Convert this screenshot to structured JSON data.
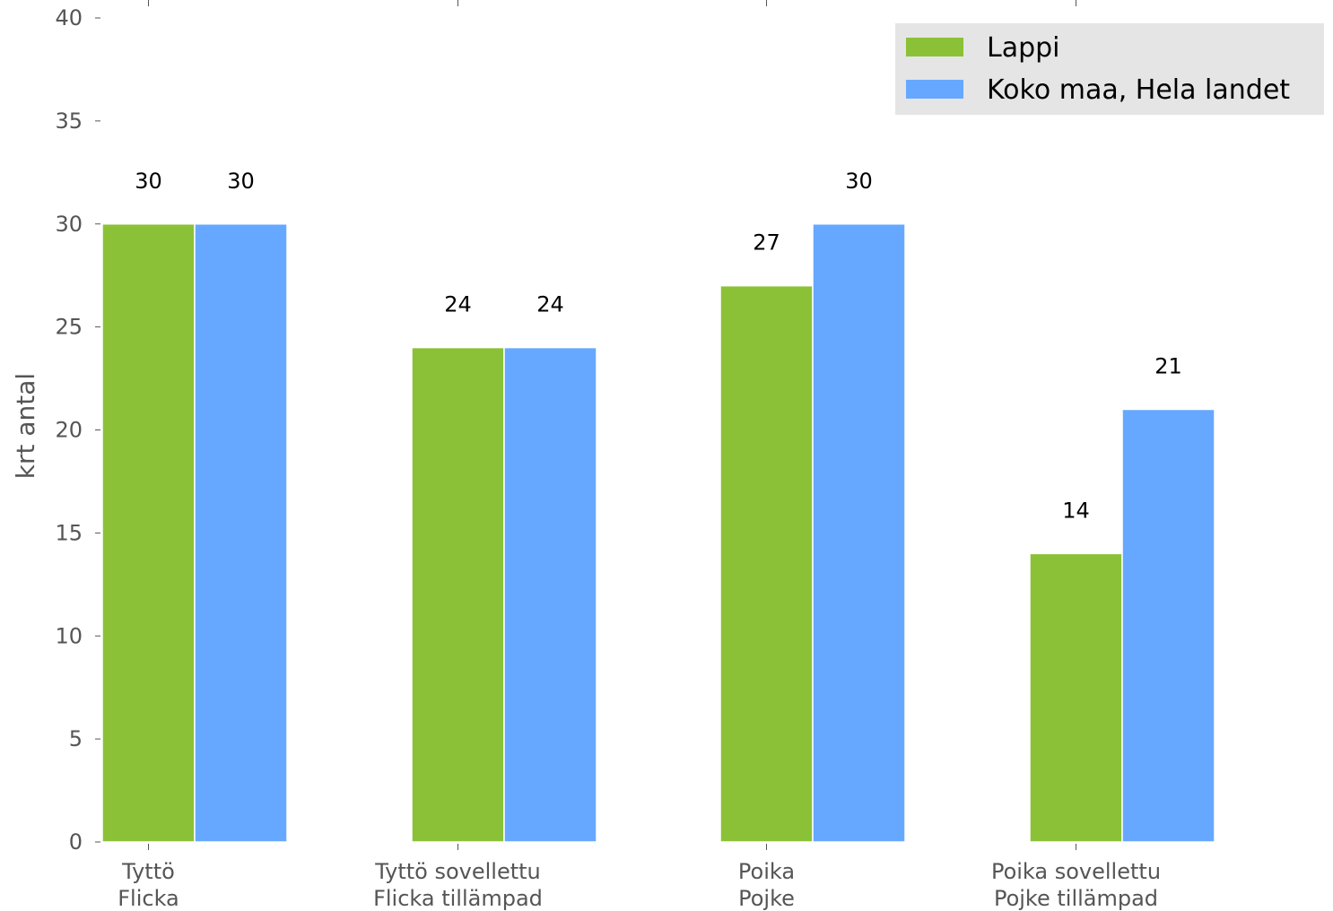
{
  "chart_data": {
    "type": "bar",
    "title": "",
    "xlabel": "",
    "ylabel": "krt antal",
    "ylim": [
      0,
      40
    ],
    "yticks": [
      0,
      5,
      10,
      15,
      20,
      25,
      30,
      35,
      40
    ],
    "categories": [
      [
        "Tyttö",
        "Flicka"
      ],
      [
        "Tyttö sovellettu",
        "Flicka tillämpad"
      ],
      [
        "Poika",
        "Pojke"
      ],
      [
        "Poika sovellettu",
        "Pojke tillämpad"
      ]
    ],
    "series": [
      {
        "name": "Lappi",
        "color": "#8bc136",
        "values": [
          30,
          24,
          27,
          14
        ]
      },
      {
        "name": "Koko maa, Hela landet",
        "color": "#66a8ff",
        "values": [
          30,
          24,
          30,
          21
        ]
      }
    ],
    "grid": false,
    "legend_position": "top-right",
    "legend_background": "#e5e5e5"
  }
}
